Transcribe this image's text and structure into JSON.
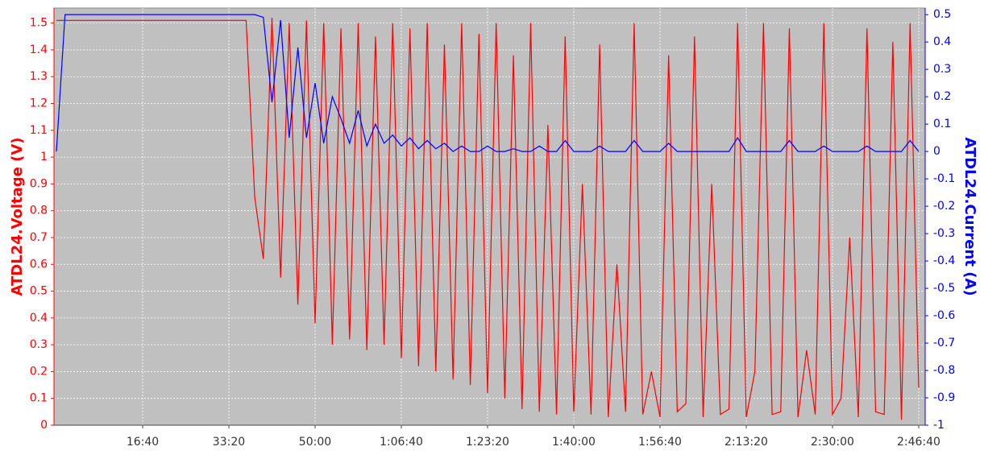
{
  "chart_data": {
    "type": "line",
    "ylabel": "ATDL24.Voltage (V)",
    "y2label": "ATDL24.Current (A)",
    "x": [
      0,
      100,
      200,
      300,
      400,
      500,
      600,
      700,
      800,
      900,
      1000,
      1100,
      1200,
      1300,
      1400,
      1500,
      1600,
      1700,
      1800,
      1900,
      2000,
      2100,
      2200,
      2300,
      2400,
      2500,
      2600,
      2700,
      2800,
      2900,
      3000,
      3100,
      3200,
      3300,
      3400,
      3500,
      3600,
      3700,
      3800,
      3900,
      4000,
      4100,
      4200,
      4300,
      4400,
      4500,
      4600,
      4700,
      4800,
      4900,
      5000,
      5100,
      5200,
      5300,
      5400,
      5500,
      5600,
      5700,
      5800,
      5900,
      6000,
      6100,
      6200,
      6300,
      6400,
      6500,
      6600,
      6700,
      6800,
      6900,
      7000,
      7100,
      7200,
      7300,
      7400,
      7500,
      7600,
      7700,
      7800,
      7900,
      8000,
      8100,
      8200,
      8300,
      8400,
      8500,
      8600,
      8700,
      8800,
      8900,
      9000,
      9100,
      9200,
      9300,
      9400,
      9500,
      9600,
      9700,
      9800,
      9900,
      10000
    ],
    "series": [
      {
        "color": "#ff0000",
        "axis": "y",
        "values": [
          1.51,
          1.51,
          1.51,
          1.51,
          1.51,
          1.51,
          1.51,
          1.51,
          1.51,
          1.51,
          1.51,
          1.51,
          1.51,
          1.51,
          1.51,
          1.51,
          1.51,
          1.51,
          1.51,
          1.51,
          1.51,
          1.51,
          1.51,
          0.85,
          0.62,
          1.52,
          0.55,
          1.5,
          0.45,
          1.51,
          0.38,
          1.5,
          0.3,
          1.48,
          0.32,
          1.5,
          0.28,
          1.45,
          0.3,
          1.5,
          0.25,
          1.48,
          0.22,
          1.5,
          0.2,
          1.42,
          0.17,
          1.5,
          0.15,
          1.46,
          0.12,
          1.5,
          0.1,
          1.38,
          0.06,
          1.5,
          0.05,
          1.12,
          0.04,
          1.45,
          0.05,
          0.9,
          0.04,
          1.42,
          0.03,
          0.6,
          0.05,
          1.5,
          0.04,
          0.2,
          0.03,
          1.38,
          0.05,
          0.08,
          1.45,
          0.03,
          0.9,
          0.04,
          0.06,
          1.5,
          0.03,
          0.2,
          1.5,
          0.04,
          0.05,
          1.48,
          0.03,
          0.28,
          0.04,
          1.5,
          0.04,
          0.1,
          0.7,
          0.03,
          1.48,
          0.05,
          0.04,
          1.43,
          0.02,
          1.5,
          0.14
        ]
      },
      {
        "color": "#0000ff",
        "axis": "y2",
        "values": [
          0,
          0.5,
          0.5,
          0.5,
          0.5,
          0.5,
          0.5,
          0.5,
          0.5,
          0.5,
          0.5,
          0.5,
          0.5,
          0.5,
          0.5,
          0.5,
          0.5,
          0.5,
          0.5,
          0.5,
          0.5,
          0.5,
          0.5,
          0.5,
          0.49,
          0.18,
          0.48,
          0.05,
          0.38,
          0.05,
          0.25,
          0.03,
          0.2,
          0.12,
          0.03,
          0.15,
          0.02,
          0.1,
          0.03,
          0.06,
          0.02,
          0.05,
          0.01,
          0.04,
          0.01,
          0.03,
          0,
          0.02,
          0,
          0,
          0.02,
          0,
          0,
          0.01,
          0,
          0,
          0.02,
          0,
          0,
          0.04,
          0,
          0,
          0,
          0.02,
          0,
          0,
          0,
          0.04,
          0,
          0,
          0,
          0.03,
          0,
          0,
          0,
          0,
          0,
          0,
          0,
          0.05,
          0,
          0,
          0,
          0,
          0,
          0.04,
          0,
          0,
          0,
          0.02,
          0,
          0,
          0,
          0,
          0.02,
          0,
          0,
          0,
          0,
          0.04,
          0
        ]
      }
    ],
    "xlim": [
      -28,
      10075
    ],
    "xticks": [
      {
        "value": 1000,
        "label": "16:40"
      },
      {
        "value": 2000,
        "label": "33:20"
      },
      {
        "value": 3000,
        "label": "50:00"
      },
      {
        "value": 4000,
        "label": "1:06:40"
      },
      {
        "value": 5000,
        "label": "1:23:20"
      },
      {
        "value": 6000,
        "label": "1:40:00"
      },
      {
        "value": 7000,
        "label": "1:56:40"
      },
      {
        "value": 8000,
        "label": "2:13:20"
      },
      {
        "value": 9000,
        "label": "2:30:00"
      },
      {
        "value": 10000,
        "label": "2:46:40"
      }
    ],
    "ylim": [
      0,
      1.556
    ],
    "yticks": [
      0,
      0.1,
      0.2,
      0.3,
      0.4,
      0.5,
      0.6,
      0.7,
      0.8,
      0.9,
      1,
      1.1,
      1.2,
      1.3,
      1.4,
      1.5
    ],
    "y2lim": [
      -1,
      0.524
    ],
    "y2ticks": [
      -1,
      -0.9,
      -0.8,
      -0.7,
      -0.6,
      -0.5,
      -0.4,
      -0.3,
      -0.2,
      -0.1,
      0,
      0.1,
      0.2,
      0.3,
      0.4,
      0.5
    ],
    "grid": true
  }
}
